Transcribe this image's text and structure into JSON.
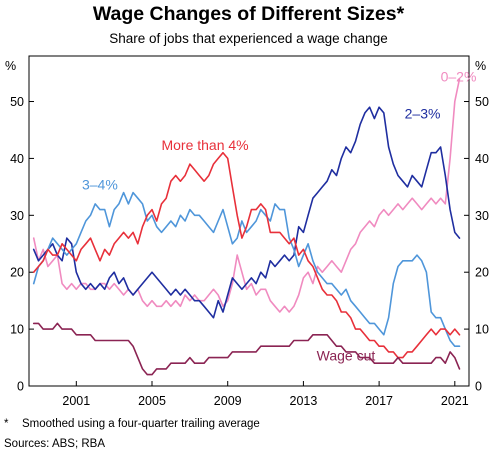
{
  "chart_data": {
    "type": "line",
    "title": "Wage Changes of Different Sizes*",
    "subtitle": "Share of jobs that experienced a wage change",
    "y_unit": "%",
    "ylim": [
      0,
      58
    ],
    "yticks": [
      0,
      10,
      20,
      30,
      40,
      50
    ],
    "xlim": [
      1998.5,
      2021.75
    ],
    "xticks": [
      2001,
      2005,
      2009,
      2013,
      2017,
      2021
    ],
    "grid": false,
    "x": [
      1998.75,
      1999,
      1999.25,
      1999.5,
      1999.75,
      2000,
      2000.25,
      2000.5,
      2000.75,
      2001,
      2001.25,
      2001.5,
      2001.75,
      2002,
      2002.25,
      2002.5,
      2002.75,
      2003,
      2003.25,
      2003.5,
      2003.75,
      2004,
      2004.25,
      2004.5,
      2004.75,
      2005,
      2005.25,
      2005.5,
      2005.75,
      2006,
      2006.25,
      2006.5,
      2006.75,
      2007,
      2007.25,
      2007.5,
      2007.75,
      2008,
      2008.25,
      2008.5,
      2008.75,
      2009,
      2009.25,
      2009.5,
      2009.75,
      2010,
      2010.25,
      2010.5,
      2010.75,
      2011,
      2011.25,
      2011.5,
      2011.75,
      2012,
      2012.25,
      2012.5,
      2012.75,
      2013,
      2013.25,
      2013.5,
      2013.75,
      2014,
      2014.25,
      2014.5,
      2014.75,
      2015,
      2015.25,
      2015.5,
      2015.75,
      2016,
      2016.25,
      2016.5,
      2016.75,
      2017,
      2017.25,
      2017.5,
      2017.75,
      2018,
      2018.25,
      2018.5,
      2018.75,
      2019,
      2019.25,
      2019.5,
      2019.75,
      2020,
      2020.25,
      2020.5,
      2020.75,
      2021,
      2021.25
    ],
    "series": [
      {
        "name": "0–2%",
        "color": "#f08bc0",
        "label_pos": [
          2020.25,
          53.5
        ],
        "values": [
          26,
          22,
          24,
          21,
          22,
          23,
          18,
          17,
          18,
          17,
          18,
          18,
          17,
          17,
          18,
          18,
          17,
          18,
          17,
          16,
          17,
          16,
          17,
          15,
          14,
          15,
          14,
          14,
          15,
          14,
          15,
          14,
          16,
          15,
          16,
          15,
          15,
          16,
          17,
          16,
          14,
          15,
          18,
          23,
          20,
          17,
          18,
          16,
          17,
          17,
          15,
          14,
          13,
          14,
          13,
          14,
          16,
          19,
          20,
          18,
          21,
          20,
          21,
          22,
          21,
          20,
          22,
          24,
          25,
          27,
          28,
          29,
          28,
          30,
          31,
          30,
          31,
          32,
          31,
          32,
          33,
          32,
          31,
          32,
          33,
          32,
          33,
          32,
          40,
          50,
          54
        ]
      },
      {
        "name": "2–3%",
        "color": "#1f2ea0",
        "label_pos": [
          2018.35,
          47
        ],
        "values": [
          24,
          22,
          23,
          24,
          25,
          23,
          22,
          26,
          25,
          20,
          18,
          17,
          18,
          17,
          18,
          17,
          19,
          20,
          18,
          19,
          17,
          16,
          17,
          18,
          19,
          20,
          19,
          18,
          17,
          16,
          17,
          16,
          17,
          16,
          15,
          15,
          14,
          13,
          12,
          15,
          13,
          16,
          19,
          18,
          17,
          18,
          19,
          18,
          20,
          19,
          22,
          21,
          22,
          23,
          22,
          23,
          28,
          27,
          30,
          33,
          34,
          35,
          36,
          38,
          37,
          40,
          42,
          41,
          43,
          46,
          48,
          49,
          47,
          49,
          48,
          42,
          39,
          37,
          36,
          35,
          37,
          36,
          35,
          38,
          41,
          41,
          42,
          37,
          31,
          27,
          26
        ]
      },
      {
        "name": "3–4%",
        "color": "#4f96da",
        "label_pos": [
          2001.3,
          34.5
        ],
        "values": [
          18,
          21,
          22,
          24,
          26,
          25,
          24,
          23,
          24,
          25,
          27,
          29,
          30,
          32,
          31,
          31,
          28,
          31,
          32,
          34,
          32,
          34,
          33,
          32,
          29,
          30,
          28,
          27,
          28,
          29,
          28,
          30,
          29,
          31,
          30,
          30,
          29,
          28,
          27,
          29,
          31,
          28,
          25,
          26,
          29,
          27,
          28,
          29,
          31,
          30,
          29,
          32,
          31,
          31,
          26,
          24,
          21,
          23,
          25,
          22,
          20,
          19,
          18,
          18,
          17,
          16,
          17,
          15,
          14,
          13,
          12,
          11,
          11,
          10,
          9,
          12,
          18,
          21,
          22,
          22,
          22,
          23,
          22,
          20,
          13,
          12,
          12,
          10,
          8,
          7,
          7
        ]
      },
      {
        "name": "More than 4%",
        "color": "#e8303a",
        "label_pos": [
          2005.5,
          41.5
        ],
        "values": [
          20,
          21,
          22,
          24,
          23,
          23,
          25,
          24,
          23,
          22,
          24,
          25,
          26,
          24,
          22,
          24,
          23,
          25,
          26,
          27,
          26,
          27,
          25,
          28,
          30,
          31,
          29,
          32,
          33,
          36,
          37,
          36,
          37,
          39,
          38,
          37,
          36,
          37,
          39,
          40,
          41,
          40,
          35,
          30,
          26,
          28,
          31,
          31,
          32,
          31,
          27,
          27,
          27,
          26,
          25,
          26,
          23,
          24,
          22,
          21,
          19,
          17,
          16,
          16,
          15,
          13,
          13,
          12,
          10,
          10,
          9,
          8,
          8,
          7,
          7,
          6,
          6,
          5,
          5,
          6,
          6,
          7,
          8,
          9,
          10,
          9,
          10,
          10,
          9,
          10,
          9
        ]
      },
      {
        "name": "Wage cut",
        "color": "#8b2453",
        "label_pos": [
          2013.7,
          4.5
        ],
        "values": [
          11,
          11,
          10,
          10,
          10,
          11,
          10,
          10,
          10,
          9,
          9,
          9,
          9,
          8,
          8,
          8,
          8,
          8,
          8,
          8,
          8,
          7,
          5,
          3,
          2,
          2,
          3,
          3,
          3,
          4,
          4,
          4,
          4,
          5,
          4,
          4,
          4,
          5,
          5,
          5,
          5,
          5,
          6,
          6,
          6,
          6,
          6,
          6,
          7,
          7,
          7,
          7,
          7,
          7,
          7,
          8,
          8,
          8,
          8,
          9,
          9,
          9,
          9,
          8,
          7,
          7,
          6,
          6,
          6,
          5,
          5,
          5,
          4,
          4,
          4,
          4,
          4,
          5,
          4,
          4,
          4,
          4,
          4,
          4,
          4,
          5,
          5,
          4,
          6,
          5,
          3
        ]
      }
    ]
  },
  "footnotes": {
    "marker": "*",
    "note": "Smoothed using a four-quarter trailing average",
    "sources": "Sources: ABS; RBA"
  }
}
